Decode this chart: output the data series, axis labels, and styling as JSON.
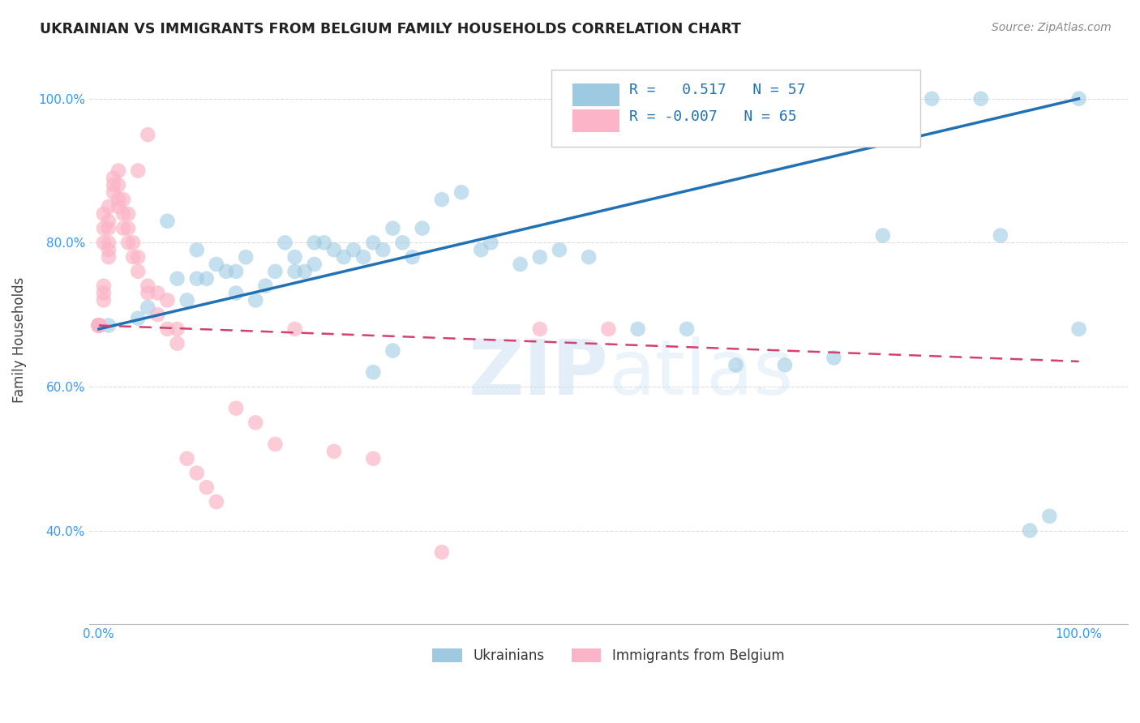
{
  "title": "UKRAINIAN VS IMMIGRANTS FROM BELGIUM FAMILY HOUSEHOLDS CORRELATION CHART",
  "source": "Source: ZipAtlas.com",
  "ylabel": "Family Households",
  "background_color": "#ffffff",
  "grid_color": "#dddddd",
  "blue_color": "#9ecae1",
  "blue_line_color": "#2171b5",
  "pink_color": "#fcb5c8",
  "pink_line_color": "#d44070",
  "legend_blue_r": "0.517",
  "legend_blue_n": "57",
  "legend_pink_r": "-0.007",
  "legend_pink_n": "65",
  "title_color": "#222222",
  "axis_label_color": "#3399ff",
  "blue_scatter_x": [
    0.01,
    0.04,
    0.05,
    0.07,
    0.08,
    0.09,
    0.1,
    0.1,
    0.11,
    0.12,
    0.13,
    0.14,
    0.14,
    0.15,
    0.16,
    0.17,
    0.18,
    0.19,
    0.2,
    0.2,
    0.21,
    0.22,
    0.22,
    0.23,
    0.24,
    0.25,
    0.26,
    0.27,
    0.28,
    0.29,
    0.3,
    0.31,
    0.32,
    0.33,
    0.35,
    0.37,
    0.39,
    0.4,
    0.43,
    0.45,
    0.47,
    0.5,
    0.55,
    0.6,
    0.65,
    0.7,
    0.75,
    0.8,
    0.85,
    0.9,
    0.92,
    0.95,
    0.97,
    1.0,
    1.0,
    0.28,
    0.3
  ],
  "blue_scatter_y": [
    0.685,
    0.695,
    0.71,
    0.83,
    0.75,
    0.72,
    0.75,
    0.79,
    0.75,
    0.77,
    0.76,
    0.73,
    0.76,
    0.78,
    0.72,
    0.74,
    0.76,
    0.8,
    0.76,
    0.78,
    0.76,
    0.77,
    0.8,
    0.8,
    0.79,
    0.78,
    0.79,
    0.78,
    0.8,
    0.79,
    0.82,
    0.8,
    0.78,
    0.82,
    0.86,
    0.87,
    0.79,
    0.8,
    0.77,
    0.78,
    0.79,
    0.78,
    0.68,
    0.68,
    0.63,
    0.63,
    0.64,
    0.81,
    1.0,
    1.0,
    0.81,
    0.4,
    0.42,
    1.0,
    0.68,
    0.62,
    0.65
  ],
  "pink_scatter_x": [
    0.0,
    0.0,
    0.0,
    0.0,
    0.0,
    0.0,
    0.0,
    0.0,
    0.0,
    0.0,
    0.0,
    0.0,
    0.0,
    0.005,
    0.005,
    0.005,
    0.005,
    0.005,
    0.005,
    0.01,
    0.01,
    0.01,
    0.01,
    0.01,
    0.01,
    0.015,
    0.015,
    0.015,
    0.02,
    0.02,
    0.02,
    0.02,
    0.025,
    0.025,
    0.025,
    0.03,
    0.03,
    0.03,
    0.035,
    0.035,
    0.04,
    0.04,
    0.04,
    0.05,
    0.05,
    0.05,
    0.06,
    0.06,
    0.07,
    0.07,
    0.08,
    0.08,
    0.09,
    0.1,
    0.11,
    0.12,
    0.14,
    0.16,
    0.18,
    0.2,
    0.24,
    0.28,
    0.35,
    0.45,
    0.52
  ],
  "pink_scatter_y": [
    0.685,
    0.685,
    0.685,
    0.685,
    0.685,
    0.685,
    0.685,
    0.685,
    0.685,
    0.685,
    0.685,
    0.685,
    0.685,
    0.72,
    0.73,
    0.74,
    0.8,
    0.82,
    0.84,
    0.78,
    0.79,
    0.8,
    0.82,
    0.83,
    0.85,
    0.87,
    0.88,
    0.89,
    0.85,
    0.86,
    0.88,
    0.9,
    0.82,
    0.84,
    0.86,
    0.8,
    0.82,
    0.84,
    0.78,
    0.8,
    0.76,
    0.78,
    0.9,
    0.73,
    0.74,
    0.95,
    0.7,
    0.73,
    0.68,
    0.72,
    0.66,
    0.68,
    0.5,
    0.48,
    0.46,
    0.44,
    0.57,
    0.55,
    0.52,
    0.68,
    0.51,
    0.5,
    0.37,
    0.68,
    0.68
  ],
  "ylim": [
    0.27,
    1.06
  ],
  "xlim": [
    -0.01,
    1.05
  ],
  "yticks": [
    0.4,
    0.6,
    0.8,
    1.0
  ],
  "yticklabels": [
    "40.0%",
    "60.0%",
    "80.0%",
    "100.0%"
  ],
  "xticks": [
    0.0,
    0.2,
    0.4,
    0.6,
    0.8,
    1.0
  ],
  "xticklabels": [
    "0.0%",
    "",
    "",
    "",
    "",
    "100.0%"
  ],
  "blue_line_x": [
    0.0,
    1.0
  ],
  "blue_line_y": [
    0.68,
    1.0
  ],
  "pink_line_x": [
    0.0,
    1.0
  ],
  "pink_line_y": [
    0.685,
    0.635
  ]
}
